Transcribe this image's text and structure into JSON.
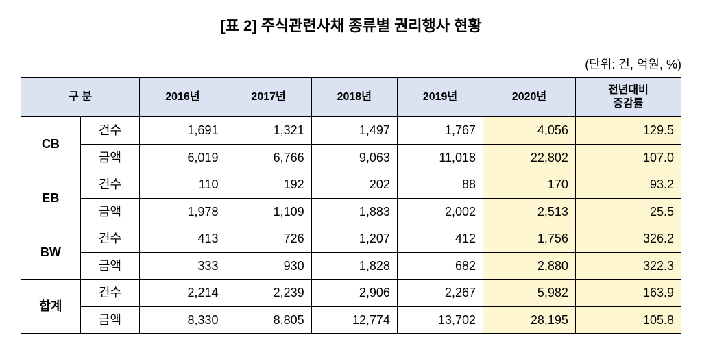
{
  "title": "[표 2] 주식관련사채 종류별 권리행사 현황",
  "unit": "(단위: 건, 억원, %)",
  "colors": {
    "header_bg": "#dbe2f1",
    "highlight_bg": "#fef7d1",
    "border": "#000000",
    "text": "#000000",
    "background": "#ffffff"
  },
  "fontsize": {
    "title": 22,
    "unit": 18,
    "cell": 18
  },
  "columns": {
    "category_label": "구  분",
    "years": [
      "2016년",
      "2017년",
      "2018년",
      "2019년",
      "2020년"
    ],
    "yoy_label": "전년대비\n증감률"
  },
  "col_widths_pct": [
    9,
    9,
    13,
    13,
    13,
    13,
    14,
    16
  ],
  "year_highlight_index": 4,
  "categories": [
    {
      "name": "CB",
      "rows": [
        {
          "label": "건수",
          "values": [
            "1,691",
            "1,321",
            "1,497",
            "1,767",
            "4,056"
          ],
          "yoy": "129.5"
        },
        {
          "label": "금액",
          "values": [
            "6,019",
            "6,766",
            "9,063",
            "11,018",
            "22,802"
          ],
          "yoy": "107.0"
        }
      ]
    },
    {
      "name": "EB",
      "rows": [
        {
          "label": "건수",
          "values": [
            "110",
            "192",
            "202",
            "88",
            "170"
          ],
          "yoy": "93.2"
        },
        {
          "label": "금액",
          "values": [
            "1,978",
            "1,109",
            "1,883",
            "2,002",
            "2,513"
          ],
          "yoy": "25.5"
        }
      ]
    },
    {
      "name": "BW",
      "rows": [
        {
          "label": "건수",
          "values": [
            "413",
            "726",
            "1,207",
            "412",
            "1,756"
          ],
          "yoy": "326.2"
        },
        {
          "label": "금액",
          "values": [
            "333",
            "930",
            "1,828",
            "682",
            "2,880"
          ],
          "yoy": "322.3"
        }
      ]
    },
    {
      "name": "합계",
      "rows": [
        {
          "label": "건수",
          "values": [
            "2,214",
            "2,239",
            "2,906",
            "2,267",
            "5,982"
          ],
          "yoy": "163.9"
        },
        {
          "label": "금액",
          "values": [
            "8,330",
            "8,805",
            "12,774",
            "13,702",
            "28,195"
          ],
          "yoy": "105.8"
        }
      ]
    }
  ]
}
